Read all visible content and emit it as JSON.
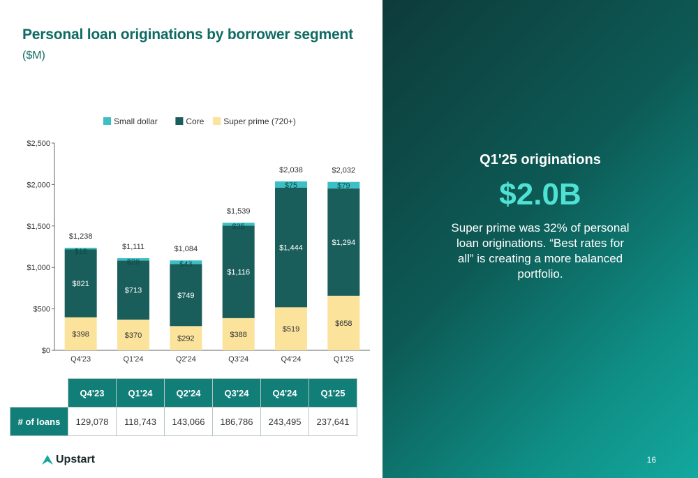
{
  "title": "Personal loan originations by borrower segment",
  "subtitle": "($M)",
  "chart_data": {
    "type": "bar",
    "stacked": true,
    "categories": [
      "Q4'23",
      "Q1'24",
      "Q2'24",
      "Q3'24",
      "Q4'24",
      "Q1'25"
    ],
    "series": [
      {
        "name": "Super prime (720+)",
        "values": [
          398,
          370,
          292,
          388,
          519,
          658
        ],
        "labels": [
          "$398",
          "$370",
          "$292",
          "$388",
          "$519",
          "$658"
        ],
        "color": "#fbe39b"
      },
      {
        "name": "Core",
        "values": [
          821,
          713,
          749,
          1116,
          1444,
          1294
        ],
        "labels": [
          "$821",
          "$713",
          "$749",
          "$1,116",
          "$1,444",
          "$1,294"
        ],
        "color": "#1a5e5b"
      },
      {
        "name": "Small dollar",
        "values": [
          18,
          28,
          43,
          35,
          75,
          79
        ],
        "labels": [
          "$18",
          "$28",
          "$43",
          "$35",
          "$75",
          "$79"
        ],
        "color": "#3cbfc6"
      }
    ],
    "totals": [
      "$1,238",
      "$1,111",
      "$1,084",
      "$1,539",
      "$2,038",
      "$2,032"
    ],
    "legend": [
      "Small dollar",
      "Core",
      "Super prime (720+)"
    ],
    "legend_position": "top",
    "yticks": [
      "$0",
      "$500",
      "$1,000",
      "$1,500",
      "$2,000",
      "$2,500"
    ],
    "ylim": [
      0,
      2500
    ],
    "grid": false
  },
  "table": {
    "headers": [
      "Q4'23",
      "Q1'24",
      "Q2'24",
      "Q3'24",
      "Q4'24",
      "Q1'25"
    ],
    "row_label": "# of loans",
    "values": [
      "129,078",
      "118,743",
      "143,066",
      "186,786",
      "243,495",
      "237,641"
    ]
  },
  "highlight": {
    "title": "Q1'25 originations",
    "value": "$2.0B",
    "desc": "Super prime was 32% of personal loan originations. “Best rates for all” is creating a more balanced portfolio."
  },
  "footer": {
    "logo": "Upstart",
    "page": "16"
  },
  "colors": {
    "brand": "#117e78",
    "accent": "#4fe1d3"
  }
}
